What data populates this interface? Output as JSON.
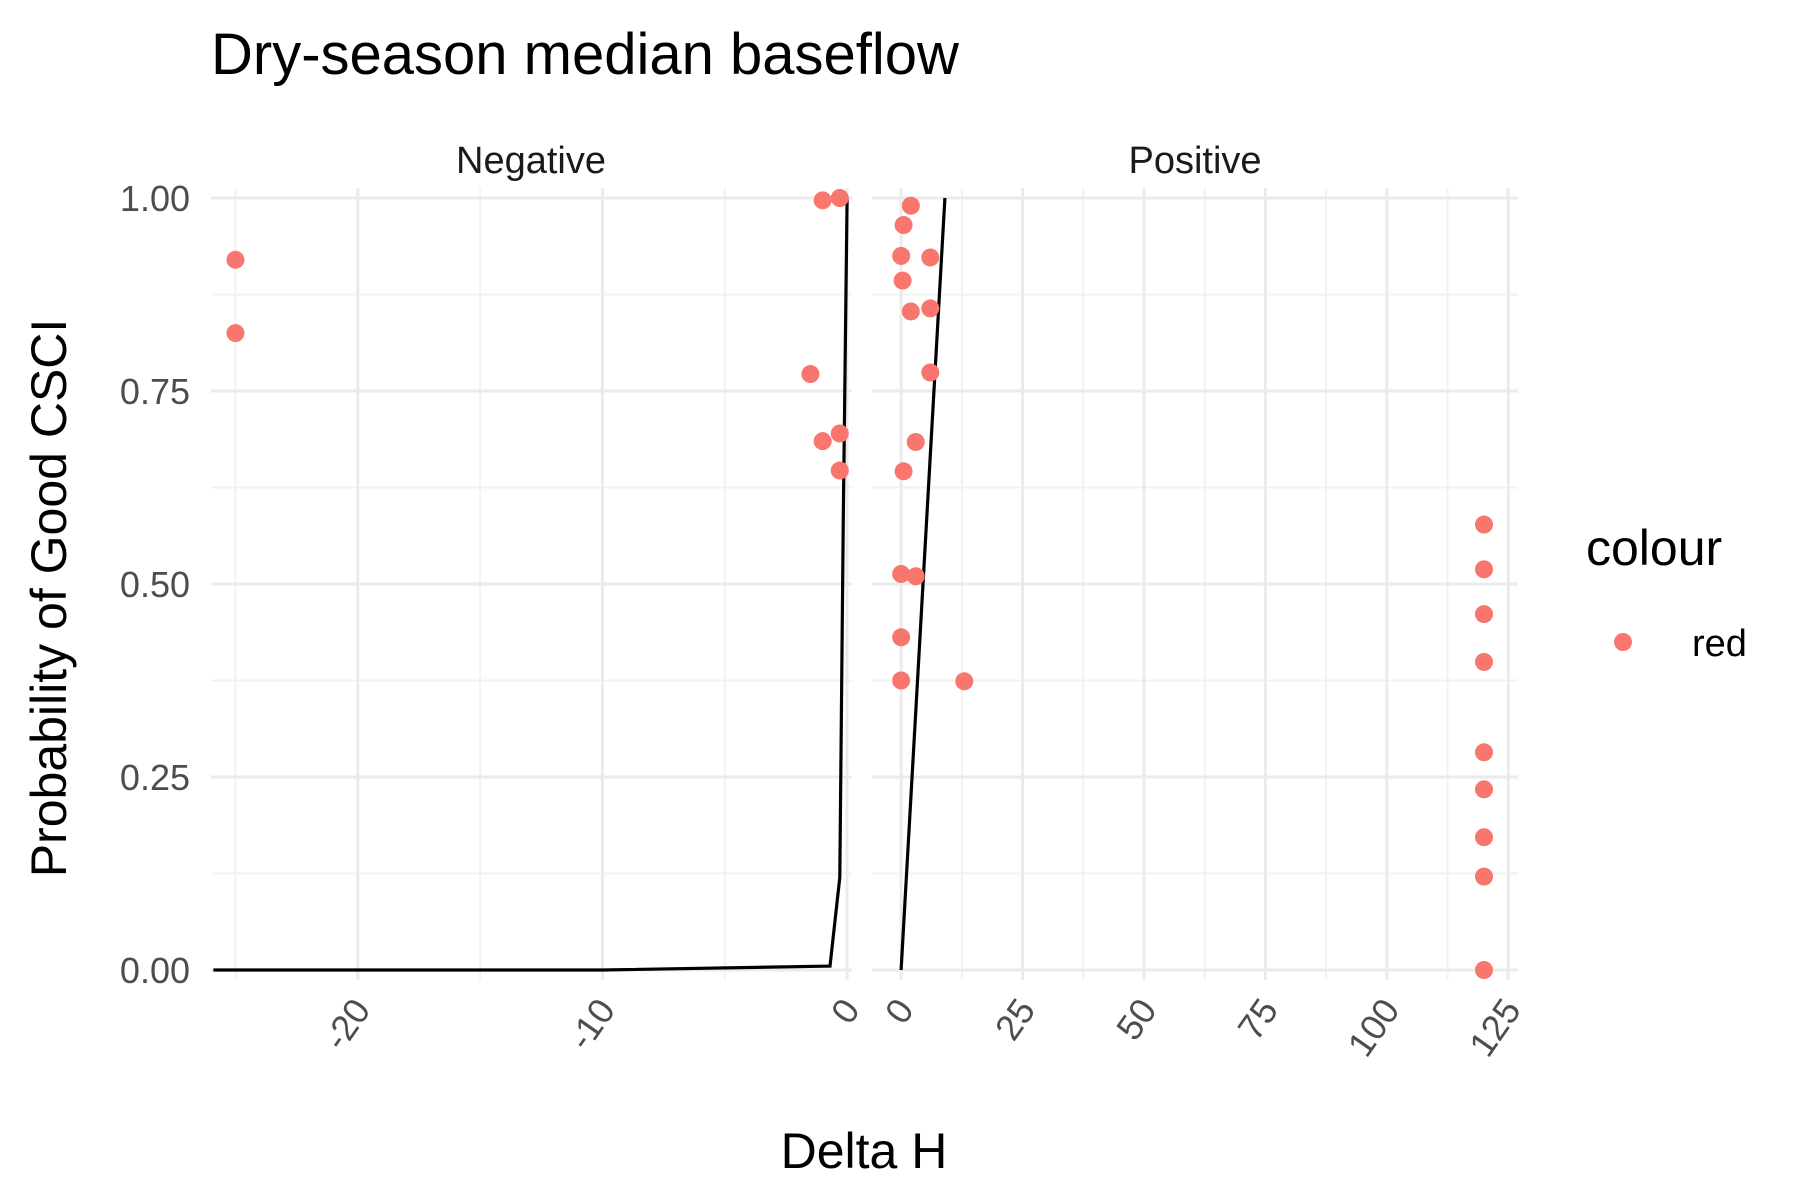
{
  "chart_data": {
    "type": "scatter",
    "title": "Dry-season median baseflow",
    "xlabel": "Delta H",
    "ylabel": "Probability of Good CSCI",
    "ylim": [
      0,
      1
    ],
    "y_ticks": [
      "0.00",
      "0.25",
      "0.50",
      "0.75",
      "1.00"
    ],
    "grid": true,
    "legend": {
      "title": "colour",
      "placement": "right",
      "entries": [
        {
          "label": "red",
          "color": "#F8766D"
        }
      ]
    },
    "panels": [
      {
        "name": "Negative",
        "xlim": [
          -26,
          0.2
        ],
        "x_ticks": [
          "-20",
          "-10",
          "0"
        ],
        "x_tick_values": [
          -20,
          -10,
          0
        ],
        "points": [
          {
            "x": -25,
            "y": 0.92
          },
          {
            "x": -25,
            "y": 0.825
          },
          {
            "x": -1.0,
            "y": 0.997
          },
          {
            "x": -0.3,
            "y": 1.0
          },
          {
            "x": -1.5,
            "y": 0.772
          },
          {
            "x": -1.0,
            "y": 0.685
          },
          {
            "x": -0.3,
            "y": 0.695
          },
          {
            "x": -0.3,
            "y": 0.647
          }
        ],
        "fit_line": [
          {
            "x": -25.9,
            "y": 0.0
          },
          {
            "x": -10,
            "y": 0.0
          },
          {
            "x": -0.7,
            "y": 0.005
          },
          {
            "x": -0.3,
            "y": 0.12
          },
          {
            "x": -0.15,
            "y": 0.6
          },
          {
            "x": 0.0,
            "y": 1.0
          }
        ]
      },
      {
        "name": "Positive",
        "xlim": [
          -6,
          127
        ],
        "x_ticks": [
          "0",
          "25",
          "50",
          "75",
          "100",
          "125"
        ],
        "x_tick_values": [
          0,
          25,
          50,
          75,
          100,
          125
        ],
        "points": [
          {
            "x": 2,
            "y": 0.99
          },
          {
            "x": 0.5,
            "y": 0.965
          },
          {
            "x": 0,
            "y": 0.925
          },
          {
            "x": 6,
            "y": 0.923
          },
          {
            "x": 0.3,
            "y": 0.893
          },
          {
            "x": 2,
            "y": 0.853
          },
          {
            "x": 6,
            "y": 0.857
          },
          {
            "x": 6,
            "y": 0.774
          },
          {
            "x": 3,
            "y": 0.684
          },
          {
            "x": 0.5,
            "y": 0.646
          },
          {
            "x": 0,
            "y": 0.513
          },
          {
            "x": 3,
            "y": 0.51
          },
          {
            "x": 0,
            "y": 0.431
          },
          {
            "x": 0,
            "y": 0.375
          },
          {
            "x": 13,
            "y": 0.374
          },
          {
            "x": 120,
            "y": 0.577
          },
          {
            "x": 120,
            "y": 0.519
          },
          {
            "x": 120,
            "y": 0.461
          },
          {
            "x": 120,
            "y": 0.399
          },
          {
            "x": 120,
            "y": 0.282
          },
          {
            "x": 120,
            "y": 0.234
          },
          {
            "x": 120,
            "y": 0.172
          },
          {
            "x": 120,
            "y": 0.121
          },
          {
            "x": 120,
            "y": 0.0
          }
        ],
        "fit_line": [
          {
            "x": 0,
            "y": 0.0
          },
          {
            "x": 9,
            "y": 1.0
          }
        ]
      }
    ],
    "point_color": "#F8766D",
    "line_color": "#000000"
  }
}
